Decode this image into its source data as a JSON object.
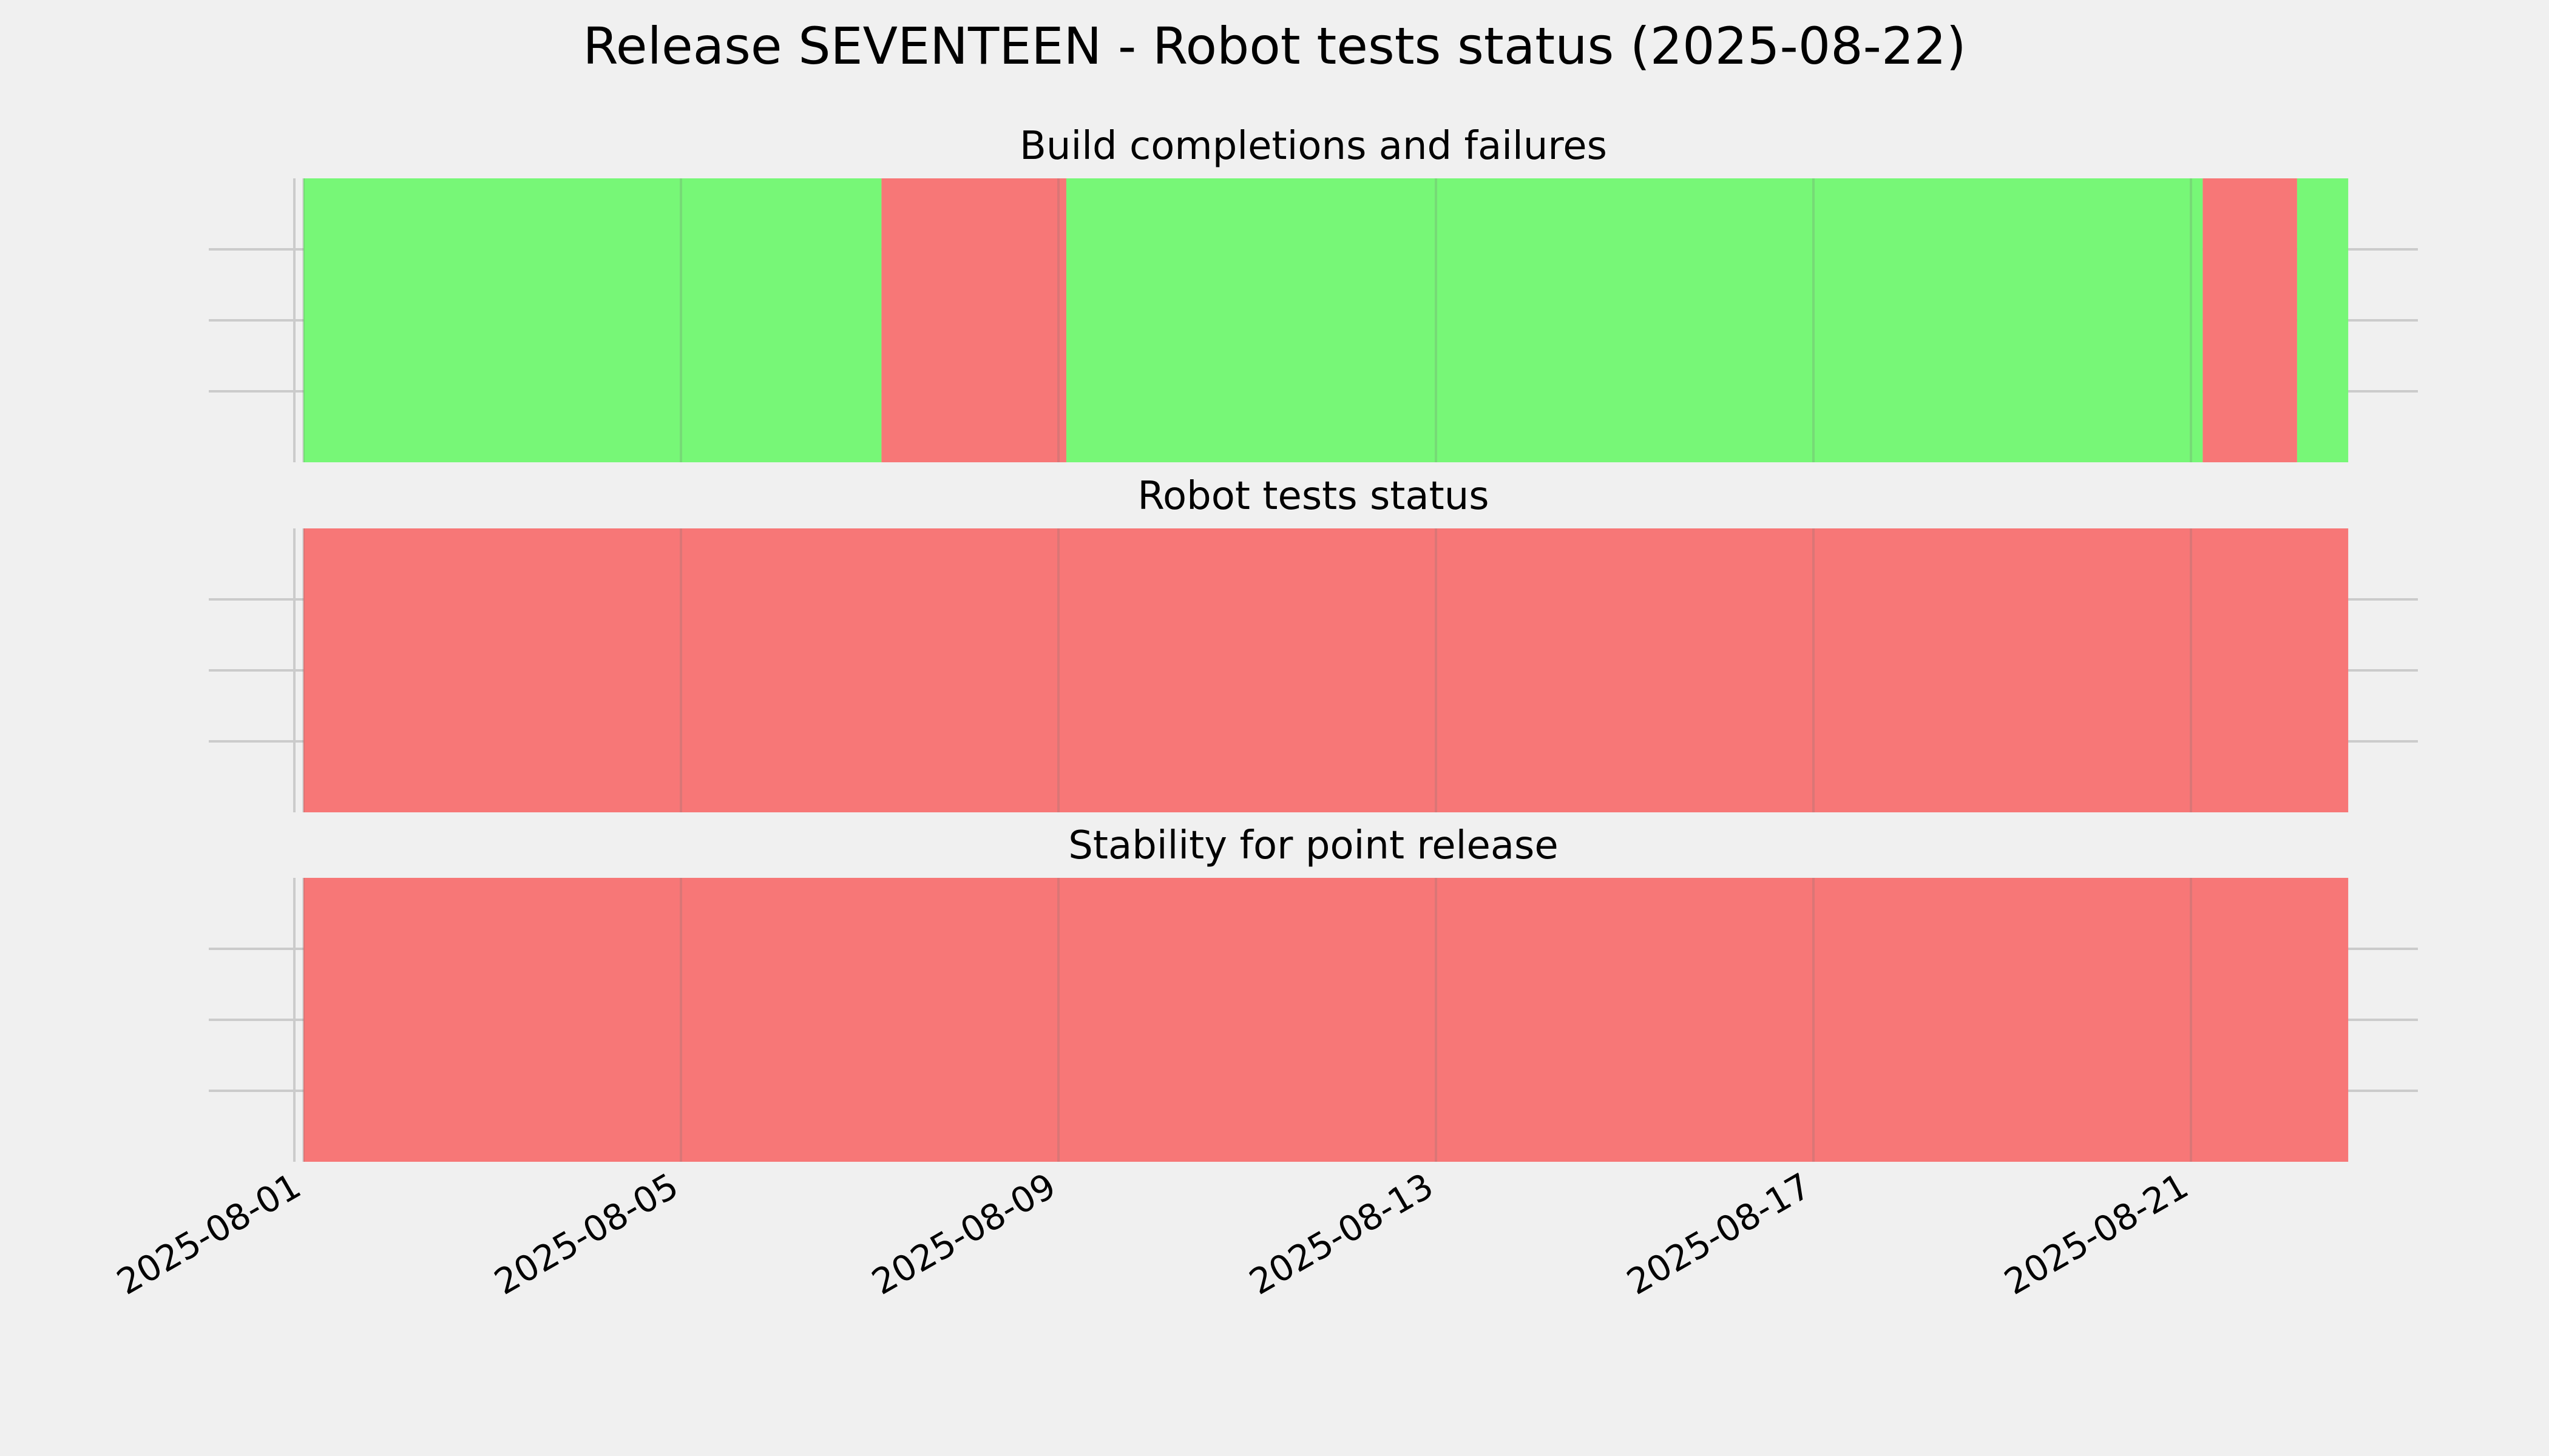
{
  "chart_data": {
    "type": "timeline",
    "title": "Release SEVENTEEN - Robot tests status (2025-08-22)",
    "x_axis": {
      "type": "date",
      "range": [
        "2025-08-01",
        "2025-08-23"
      ],
      "ticks": [
        "2025-08-01",
        "2025-08-05",
        "2025-08-09",
        "2025-08-13",
        "2025-08-17",
        "2025-08-21"
      ],
      "tick_rotation": "30°"
    },
    "grid": true,
    "colors": {
      "pass": "#77f777",
      "fail": "#f77777",
      "background": "#f0f0f0",
      "grid": "#cbcbcb"
    },
    "panels": [
      {
        "title": "Build completions and failures",
        "segments": [
          {
            "start": "2025-08-01T00:00",
            "end": "2025-08-07T03:00",
            "status": "pass"
          },
          {
            "start": "2025-08-07T03:00",
            "end": "2025-08-09T02:00",
            "status": "fail"
          },
          {
            "start": "2025-08-09T02:00",
            "end": "2025-08-21T03:00",
            "status": "pass"
          },
          {
            "start": "2025-08-21T03:00",
            "end": "2025-08-22T03:00",
            "status": "fail"
          },
          {
            "start": "2025-08-22T03:00",
            "end": "2025-08-22T16:00",
            "status": "pass"
          }
        ]
      },
      {
        "title": "Robot tests status",
        "segments": [
          {
            "start": "2025-08-01T00:00",
            "end": "2025-08-22T16:00",
            "status": "fail"
          }
        ]
      },
      {
        "title": "Stability for point release",
        "segments": [
          {
            "start": "2025-08-01T00:00",
            "end": "2025-08-22T16:00",
            "status": "fail"
          }
        ]
      }
    ]
  }
}
